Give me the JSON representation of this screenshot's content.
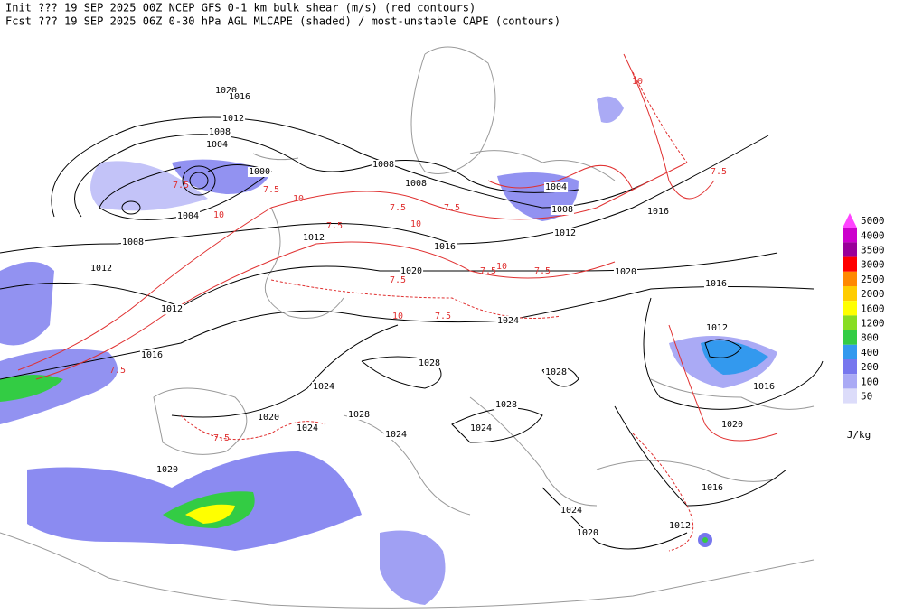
{
  "header": {
    "line1": "Init  ??? 19 SEP 2025 00Z  NCEP GFS 0-1 km bulk shear (m/s) (red contours)",
    "line2": "Fcst ??? 19 SEP 2025 06Z  0-30 hPa AGL MLCAPE (shaded) / most-unstable CAPE (contours)"
  },
  "legend": {
    "unit": "J/kg",
    "items": [
      {
        "label": "5000",
        "color": "#ff44ff"
      },
      {
        "label": "4000",
        "color": "#cc00cc"
      },
      {
        "label": "3500",
        "color": "#990099"
      },
      {
        "label": "3000",
        "color": "#ff0000"
      },
      {
        "label": "2500",
        "color": "#ff8800"
      },
      {
        "label": "2000",
        "color": "#ffcc00"
      },
      {
        "label": "1600",
        "color": "#ffff00"
      },
      {
        "label": "1200",
        "color": "#88dd22"
      },
      {
        "label": "800",
        "color": "#33cc44"
      },
      {
        "label": "400",
        "color": "#3399ee"
      },
      {
        "label": "200",
        "color": "#7777ee"
      },
      {
        "label": "100",
        "color": "#aaaaf5"
      },
      {
        "label": "50",
        "color": "#dcdcfa"
      }
    ]
  },
  "isobar_labels": [
    "1020",
    "1016",
    "1012",
    "1008",
    "1004",
    "1000",
    "1004",
    "1008",
    "1012",
    "1012",
    "1016",
    "1008",
    "1008",
    "1012",
    "1016",
    "1020",
    "1024",
    "1028",
    "1024",
    "1028",
    "1020",
    "1024",
    "1024",
    "1020",
    "1028",
    "1028",
    "1024",
    "1004",
    "1008",
    "1012",
    "1016",
    "1020",
    "1016",
    "1012",
    "1016",
    "1020",
    "1016",
    "1024",
    "1020",
    "1012"
  ],
  "shear_labels": [
    "7.5",
    "10",
    "7.5",
    "10",
    "7.5",
    "7.5",
    "10",
    "7.5",
    "7.5",
    "10",
    "7.5",
    "7.5",
    "10",
    "7.5",
    "7.5",
    "10",
    "7.5",
    "7.5"
  ]
}
